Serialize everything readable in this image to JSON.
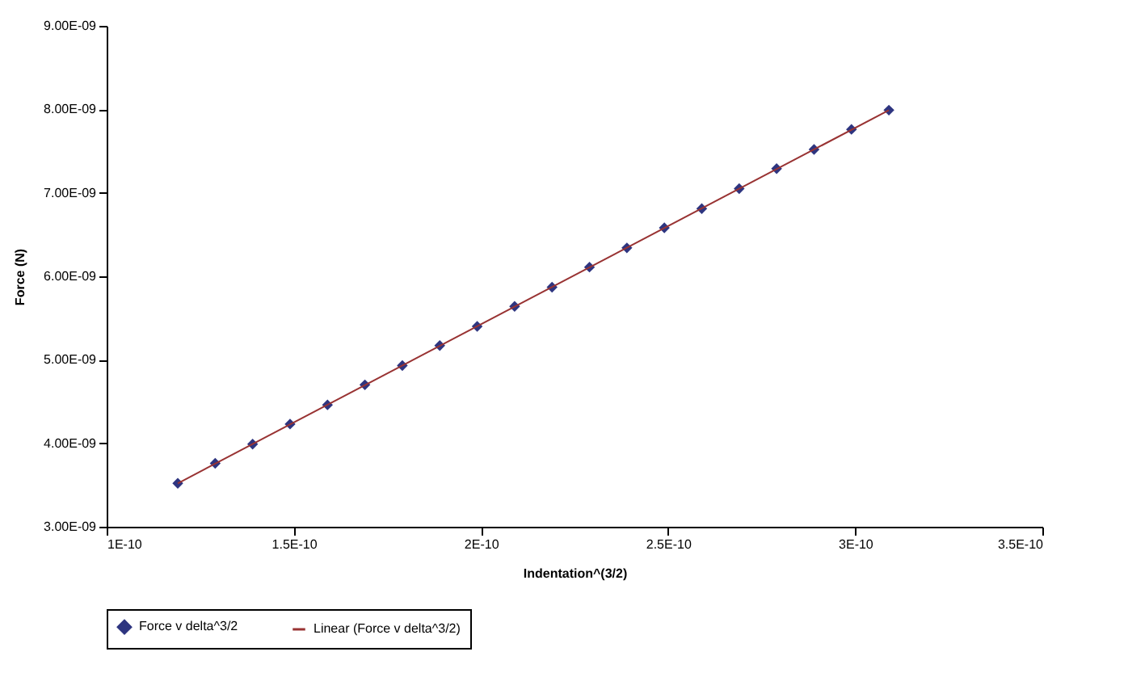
{
  "chart_data": {
    "type": "scatter",
    "xlabel": "Indentation^(3/2)",
    "ylabel": "Force (N)",
    "xlim": [
      1e-10,
      3.5e-10
    ],
    "xticks": [
      {
        "value": 1e-10,
        "label": "1E-10"
      },
      {
        "value": 1.5e-10,
        "label": "1.5E-10"
      },
      {
        "value": 2e-10,
        "label": "2E-10"
      },
      {
        "value": 2.5e-10,
        "label": "2.5E-10"
      },
      {
        "value": 3e-10,
        "label": "3E-10"
      },
      {
        "value": 3.5e-10,
        "label": "3.5E-10"
      }
    ],
    "ylim": [
      3e-09,
      9e-09
    ],
    "yticks": [
      {
        "value": 3e-09,
        "label": "3.00E-09"
      },
      {
        "value": 4e-09,
        "label": "4.00E-09"
      },
      {
        "value": 5e-09,
        "label": "5.00E-09"
      },
      {
        "value": 6e-09,
        "label": "6.00E-09"
      },
      {
        "value": 7e-09,
        "label": "7.00E-09"
      },
      {
        "value": 8e-09,
        "label": "8.00E-09"
      },
      {
        "value": 9e-09,
        "label": "9.00E-09"
      }
    ],
    "legend": "bottom",
    "series": [
      {
        "name": "Force v delta^3/2",
        "marker": "diamond",
        "color": "#2e3580",
        "x": [
          1.19e-10,
          1.29e-10,
          1.39e-10,
          1.49e-10,
          1.59e-10,
          1.69e-10,
          1.79e-10,
          1.89e-10,
          1.99e-10,
          2.09e-10,
          2.19e-10,
          2.29e-10,
          2.39e-10,
          2.49e-10,
          2.59e-10,
          2.69e-10,
          2.79e-10,
          2.89e-10,
          2.99e-10,
          3.09e-10
        ],
        "values": [
          3.52e-09,
          3.76e-09,
          3.99e-09,
          4.23e-09,
          4.46e-09,
          4.7e-09,
          4.93e-09,
          5.17e-09,
          5.4e-09,
          5.64e-09,
          5.87e-09,
          6.11e-09,
          6.34e-09,
          6.58e-09,
          6.81e-09,
          7.05e-09,
          7.29e-09,
          7.52e-09,
          7.76e-09,
          7.99e-09
        ]
      },
      {
        "name": "Linear (Force v delta^3/2)",
        "type": "line",
        "line_style": "solid",
        "color": "#993333",
        "x": [
          1.19e-10,
          3.09e-10
        ],
        "values": [
          3.52e-09,
          7.99e-09
        ]
      }
    ]
  }
}
